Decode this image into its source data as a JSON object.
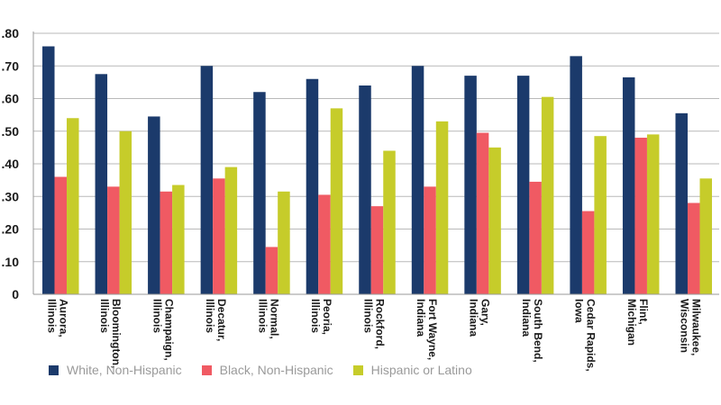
{
  "chart_data": {
    "type": "bar",
    "title": "",
    "xlabel": "",
    "ylabel": "",
    "ylim": [
      0,
      0.8
    ],
    "y_ticks": [
      {
        "value": 0,
        "label": "0"
      },
      {
        "value": 0.1,
        "label": ".10"
      },
      {
        "value": 0.2,
        "label": ".20"
      },
      {
        "value": 0.3,
        "label": ".30"
      },
      {
        "value": 0.4,
        "label": ".40"
      },
      {
        "value": 0.5,
        "label": ".50"
      },
      {
        "value": 0.6,
        "label": ".60"
      },
      {
        "value": 0.7,
        "label": ".70"
      },
      {
        "value": 0.8,
        "label": ".80"
      }
    ],
    "grid": true,
    "legend_position": "bottom-left",
    "categories": [
      [
        "Aurora,",
        "Illinois"
      ],
      [
        "Bloomington,",
        "Illinois"
      ],
      [
        "Champaign,",
        "Illinois"
      ],
      [
        "Decatur,",
        "Illinois"
      ],
      [
        "Normal,",
        "Illinois"
      ],
      [
        "Peoria,",
        "Illinois"
      ],
      [
        "Rockford,",
        "Illinois"
      ],
      [
        "Fort Wayne,",
        "Indiana"
      ],
      [
        "Gary,",
        "Indiana"
      ],
      [
        "South Bend,",
        "Indiana"
      ],
      [
        "Cedar Rapids,",
        "Iowa"
      ],
      [
        "Flint,",
        "Michigan"
      ],
      [
        "Milwaukee,",
        "Wisconsin"
      ]
    ],
    "series": [
      {
        "name": "White, Non-Hispanic",
        "color": "#1b3a6b",
        "values": [
          0.76,
          0.675,
          0.545,
          0.7,
          0.62,
          0.66,
          0.64,
          0.7,
          0.67,
          0.67,
          0.73,
          0.665,
          0.555
        ]
      },
      {
        "name": "Black, Non-Hispanic",
        "color": "#f05a63",
        "values": [
          0.36,
          0.33,
          0.315,
          0.355,
          0.145,
          0.305,
          0.27,
          0.33,
          0.495,
          0.345,
          0.255,
          0.48,
          0.28
        ]
      },
      {
        "name": "Hispanic or Latino",
        "color": "#c6cc2a",
        "values": [
          0.54,
          0.5,
          0.335,
          0.39,
          0.315,
          0.57,
          0.44,
          0.53,
          0.45,
          0.605,
          0.485,
          0.49,
          0.355
        ]
      }
    ]
  }
}
